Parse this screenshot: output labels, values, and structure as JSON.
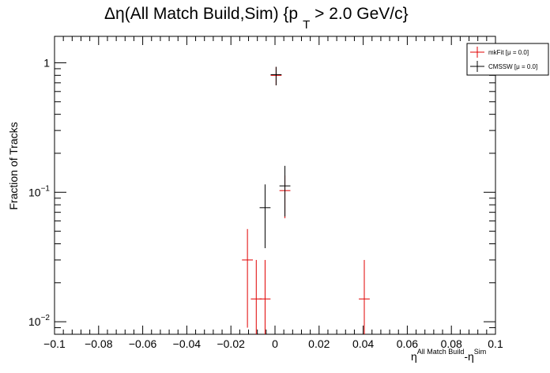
{
  "chart_data": {
    "type": "scatter",
    "title": {
      "prefix": "Δη(All Match Build,Sim) {p",
      "sub": "T",
      "suffix": " > 2.0 GeV/c}"
    },
    "xlabel": {
      "base1": "η",
      "sup1": "All Match Build",
      "mid": "-η",
      "sup2": "Sim"
    },
    "ylabel": "Fraction of Tracks",
    "xlim": [
      -0.1,
      0.1
    ],
    "ylim": [
      0.008,
      1.6
    ],
    "yscale": "log",
    "grid": false,
    "legend_position": "top-right",
    "x_ticks": [
      {
        "value": -0.1,
        "label": "−0.1"
      },
      {
        "value": -0.08,
        "label": "−0.08"
      },
      {
        "value": -0.06,
        "label": "−0.06"
      },
      {
        "value": -0.04,
        "label": "−0.04"
      },
      {
        "value": -0.02,
        "label": "−0.02"
      },
      {
        "value": 0,
        "label": "0"
      },
      {
        "value": 0.02,
        "label": "0.02"
      },
      {
        "value": 0.04,
        "label": "0.04"
      },
      {
        "value": 0.06,
        "label": "0.06"
      },
      {
        "value": 0.08,
        "label": "0.08"
      },
      {
        "value": 0.1,
        "label": "0.1"
      }
    ],
    "y_ticks": [
      {
        "value": 1,
        "base": "1",
        "exp": ""
      },
      {
        "value": 0.1,
        "base": "10",
        "exp": "−1"
      },
      {
        "value": 0.01,
        "base": "10",
        "exp": "−2"
      }
    ],
    "series": [
      {
        "name": "mkFit  [μ = 0.0]",
        "color": "#e00000",
        "points": [
          {
            "x": -0.0125,
            "y": 0.03,
            "ylo": 0.009,
            "yhi": 0.052
          },
          {
            "x": -0.0085,
            "y": 0.015,
            "ylo": 0.008,
            "yhi": 0.03
          },
          {
            "x": -0.0045,
            "y": 0.015,
            "ylo": 0.008,
            "yhi": 0.03
          },
          {
            "x": 0.0005,
            "y": 0.8,
            "ylo": 0.67,
            "yhi": 0.93
          },
          {
            "x": 0.0045,
            "y": 0.103,
            "ylo": 0.063,
            "yhi": 0.135
          },
          {
            "x": 0.0405,
            "y": 0.015,
            "ylo": 0.008,
            "yhi": 0.03
          }
        ]
      },
      {
        "name": "CMSSW  [μ = 0.0]",
        "color": "#000000",
        "points": [
          {
            "x": -0.0045,
            "y": 0.076,
            "ylo": 0.037,
            "yhi": 0.115
          },
          {
            "x": 0.0005,
            "y": 0.81,
            "ylo": 0.67,
            "yhi": 0.93
          },
          {
            "x": 0.0045,
            "y": 0.112,
            "ylo": 0.065,
            "yhi": 0.16
          }
        ]
      }
    ]
  }
}
